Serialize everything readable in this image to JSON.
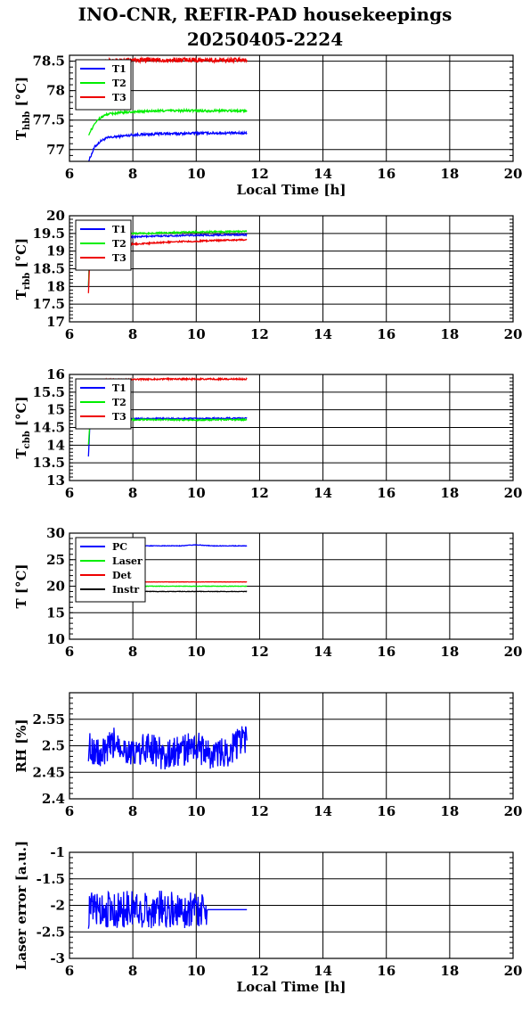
{
  "header": {
    "title_line1": "INO-CNR, REFIR-PAD housekeepings",
    "title_line2": "20250405-2224"
  },
  "chart_data": [
    {
      "type": "line",
      "id": "hbb",
      "ylabel_main": "T",
      "ylabel_sub": "hbb",
      "ylabel_unit": "[°C]",
      "xlabel": "Local Time [h]",
      "xlim": [
        6,
        20
      ],
      "ylim": [
        76.8,
        78.6
      ],
      "xticks": [
        6,
        8,
        10,
        12,
        14,
        16,
        18,
        20
      ],
      "yticks": [
        77,
        77.5,
        78,
        78.5
      ],
      "ytick_labels": [
        "77",
        "77.5",
        "78",
        "78.5"
      ],
      "grid": true,
      "legend_position": "top-left",
      "series": [
        {
          "name": "T1",
          "color": "#0000ff",
          "x": [
            6.6,
            6.8,
            7.0,
            7.2,
            7.5,
            8.0,
            8.5,
            9.0,
            9.5,
            10.0,
            10.5,
            11.0,
            11.6
          ],
          "y": [
            76.8,
            77.05,
            77.15,
            77.2,
            77.22,
            77.25,
            77.26,
            77.27,
            77.27,
            77.28,
            77.28,
            77.28,
            77.28
          ],
          "noise": 0.02
        },
        {
          "name": "T2",
          "color": "#00ee00",
          "x": [
            6.6,
            6.8,
            7.0,
            7.2,
            7.5,
            8.0,
            8.5,
            9.0,
            9.5,
            10.0,
            10.5,
            11.0,
            11.6
          ],
          "y": [
            77.25,
            77.45,
            77.55,
            77.6,
            77.62,
            77.64,
            77.65,
            77.66,
            77.66,
            77.66,
            77.66,
            77.66,
            77.66
          ],
          "noise": 0.02
        },
        {
          "name": "T3",
          "color": "#ee0000",
          "x": [
            7.0,
            7.2,
            7.5,
            8.0,
            8.5,
            9.0,
            9.5,
            10.0,
            10.5,
            11.0,
            11.6
          ],
          "y": [
            78.45,
            78.5,
            78.5,
            78.52,
            78.52,
            78.52,
            78.52,
            78.52,
            78.52,
            78.52,
            78.52
          ],
          "noise": 0.04
        }
      ]
    },
    {
      "type": "line",
      "id": "rbb",
      "ylabel_main": "T",
      "ylabel_sub": "rbb",
      "ylabel_unit": "[°C]",
      "xlabel": "",
      "xlim": [
        6,
        20
      ],
      "ylim": [
        17,
        20
      ],
      "xticks": [
        6,
        8,
        10,
        12,
        14,
        16,
        18,
        20
      ],
      "yticks": [
        17,
        17.5,
        18,
        18.5,
        19,
        19.5,
        20
      ],
      "ytick_labels": [
        "17",
        "17.5",
        "18",
        "18.5",
        "19",
        "19.5",
        "20"
      ],
      "grid": true,
      "legend_position": "top-left",
      "series": [
        {
          "name": "T1",
          "color": "#0000ff",
          "x": [
            6.6,
            6.65,
            7.0,
            7.5,
            8.0,
            8.5,
            9.0,
            9.5,
            10.0,
            10.5,
            11.0,
            11.6
          ],
          "y": [
            18.0,
            19.3,
            19.35,
            19.38,
            19.4,
            19.42,
            19.43,
            19.44,
            19.45,
            19.45,
            19.46,
            19.46
          ],
          "noise": 0.02
        },
        {
          "name": "T2",
          "color": "#00ee00",
          "x": [
            6.6,
            6.65,
            7.0,
            7.5,
            8.0,
            8.5,
            9.0,
            9.5,
            10.0,
            10.5,
            11.0,
            11.6
          ],
          "y": [
            18.0,
            19.4,
            19.45,
            19.47,
            19.5,
            19.5,
            19.52,
            19.53,
            19.54,
            19.55,
            19.55,
            19.56
          ],
          "noise": 0.02
        },
        {
          "name": "T3",
          "color": "#ee0000",
          "x": [
            6.6,
            6.65,
            7.0,
            7.5,
            8.0,
            8.5,
            9.0,
            9.5,
            10.0,
            10.5,
            11.0,
            11.6
          ],
          "y": [
            17.8,
            19.1,
            19.15,
            19.18,
            19.2,
            19.22,
            19.25,
            19.27,
            19.28,
            19.3,
            19.31,
            19.32
          ],
          "noise": 0.02
        }
      ]
    },
    {
      "type": "line",
      "id": "cbb",
      "ylabel_main": "T",
      "ylabel_sub": "cbb",
      "ylabel_unit": "[°C]",
      "xlabel": "",
      "xlim": [
        6,
        20
      ],
      "ylim": [
        13,
        16
      ],
      "xticks": [
        6,
        8,
        10,
        12,
        14,
        16,
        18,
        20
      ],
      "yticks": [
        13,
        13.5,
        14,
        14.5,
        15,
        15.5,
        16
      ],
      "ytick_labels": [
        "13",
        "13.5",
        "14",
        "14.5",
        "15",
        "15.5",
        "16"
      ],
      "grid": true,
      "legend_position": "top-left",
      "series": [
        {
          "name": "T1",
          "color": "#0000ff",
          "x": [
            6.6,
            6.65,
            7.0,
            8.0,
            9.0,
            10.0,
            11.0,
            11.6
          ],
          "y": [
            13.7,
            14.7,
            14.75,
            14.75,
            14.75,
            14.75,
            14.76,
            14.76
          ],
          "noise": 0.02
        },
        {
          "name": "T2",
          "color": "#00ee00",
          "x": [
            6.6,
            6.65,
            7.0,
            8.0,
            9.0,
            10.0,
            11.0,
            11.6
          ],
          "y": [
            14.0,
            14.7,
            14.72,
            14.72,
            14.72,
            14.71,
            14.72,
            14.72
          ],
          "noise": 0.02
        },
        {
          "name": "T3",
          "color": "#ee0000",
          "x": [
            7.1,
            8.0,
            9.0,
            10.0,
            11.0,
            11.6
          ],
          "y": [
            15.85,
            15.86,
            15.87,
            15.87,
            15.87,
            15.87
          ],
          "noise": 0.02
        }
      ]
    },
    {
      "type": "line",
      "id": "temps",
      "ylabel_main": "T [°C]",
      "ylabel_sub": "",
      "ylabel_unit": "",
      "xlabel": "",
      "xlim": [
        6,
        20
      ],
      "ylim": [
        10,
        30
      ],
      "xticks": [
        6,
        8,
        10,
        12,
        14,
        16,
        18,
        20
      ],
      "yticks": [
        10,
        15,
        20,
        25,
        30
      ],
      "ytick_labels": [
        "10",
        "15",
        "20",
        "25",
        "30"
      ],
      "grid": true,
      "legend_position": "top-left",
      "series": [
        {
          "name": "PC",
          "color": "#0000ff",
          "x": [
            7.0,
            8.0,
            9.0,
            9.5,
            10.0,
            10.5,
            11.0,
            11.6
          ],
          "y": [
            27.6,
            27.6,
            27.6,
            27.6,
            27.8,
            27.6,
            27.6,
            27.6
          ],
          "noise": 0.05
        },
        {
          "name": "Laser",
          "color": "#00ee00",
          "x": [
            7.0,
            8.0,
            9.0,
            10.0,
            11.0,
            11.6
          ],
          "y": [
            20.0,
            20.0,
            20.0,
            20.0,
            20.0,
            20.0
          ],
          "noise": 0.04
        },
        {
          "name": "Det",
          "color": "#ee0000",
          "x": [
            7.0,
            8.0,
            9.0,
            10.0,
            11.0,
            11.6
          ],
          "y": [
            20.8,
            20.8,
            20.8,
            20.8,
            20.8,
            20.8
          ],
          "noise": 0.03
        },
        {
          "name": "Instr",
          "color": "#000000",
          "x": [
            7.0,
            8.0,
            9.0,
            10.0,
            11.0,
            11.6
          ],
          "y": [
            19.0,
            19.0,
            19.0,
            19.0,
            19.0,
            19.0
          ],
          "noise": 0.04
        }
      ]
    },
    {
      "type": "line",
      "id": "rh",
      "ylabel_main": "RH [%]",
      "ylabel_sub": "",
      "ylabel_unit": "",
      "xlabel": "",
      "xlim": [
        6,
        20
      ],
      "ylim": [
        2.4,
        2.6
      ],
      "xticks": [
        6,
        8,
        10,
        12,
        14,
        16,
        18,
        20
      ],
      "yticks": [
        2.4,
        2.45,
        2.5,
        2.55
      ],
      "ytick_labels": [
        "2.4",
        "2.45",
        "2.5",
        "2.55"
      ],
      "grid": true,
      "legend_position": "none",
      "series": [
        {
          "name": "",
          "color": "#0000ff",
          "x": [
            6.6,
            7.0,
            7.5,
            8.0,
            8.5,
            9.0,
            9.5,
            10.0,
            10.5,
            11.0,
            11.4,
            11.6
          ],
          "y": [
            2.5,
            2.48,
            2.51,
            2.48,
            2.5,
            2.48,
            2.49,
            2.5,
            2.48,
            2.49,
            2.51,
            2.51
          ],
          "noise": 0.03
        }
      ]
    },
    {
      "type": "line",
      "id": "laser",
      "ylabel_main": "Laser error [a.u.]",
      "ylabel_sub": "",
      "ylabel_unit": "",
      "xlabel": "Local Time [h]",
      "xlim": [
        6,
        20
      ],
      "ylim": [
        -3,
        -1
      ],
      "xticks": [
        6,
        8,
        10,
        12,
        14,
        16,
        18,
        20
      ],
      "yticks": [
        -3,
        -2.5,
        -2,
        -1.5,
        -1
      ],
      "ytick_labels": [
        "-3",
        "-2.5",
        "-2",
        "-1.5",
        "-1"
      ],
      "grid": true,
      "legend_position": "none",
      "series": [
        {
          "name": "",
          "color": "#0000ff",
          "x": [
            6.6,
            7.0,
            7.5,
            8.0,
            8.5,
            9.0,
            9.5,
            10.0,
            10.35
          ],
          "y": [
            -2.1,
            -2.05,
            -2.1,
            -2.05,
            -2.1,
            -2.05,
            -2.1,
            -2.05,
            -2.08
          ],
          "noise": 0.35
        },
        {
          "name": "",
          "color": "#0000ff",
          "x": [
            10.35,
            11.6
          ],
          "y": [
            -2.08,
            -2.08
          ],
          "noise": 0
        }
      ]
    }
  ]
}
